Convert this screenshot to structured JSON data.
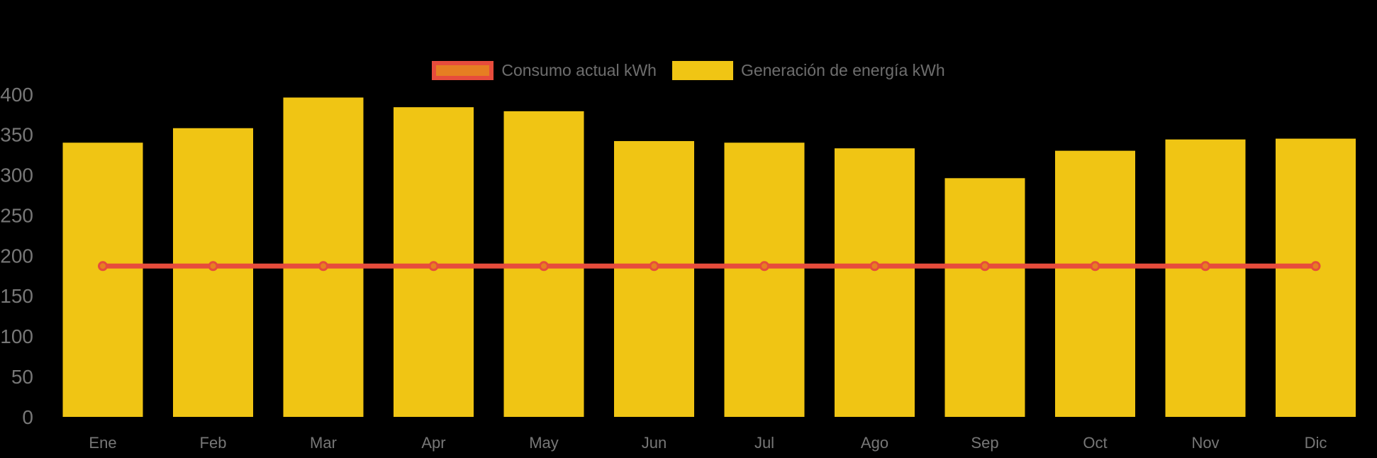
{
  "page": {
    "background_color": "#000000"
  },
  "legend": {
    "text_color": "#6E6E6E",
    "items": [
      {
        "label": "Consumo actual kWh",
        "type": "line",
        "swatch_fill": "#E67E22",
        "swatch_border": "#E74C3C"
      },
      {
        "label": "Generación de energía kWh",
        "type": "bar",
        "swatch_fill": "#F0C514"
      }
    ]
  },
  "chart_data": {
    "type": "bar",
    "title": "",
    "xlabel": "",
    "ylabel": "",
    "categories": [
      "Ene",
      "Feb",
      "Mar",
      "Apr",
      "May",
      "Jun",
      "Jul",
      "Ago",
      "Sep",
      "Oct",
      "Nov",
      "Dic"
    ],
    "series": [
      {
        "name": "Generación de energía kWh",
        "type": "bar",
        "color": "#F0C514",
        "values": [
          340,
          358,
          396,
          384,
          379,
          342,
          340,
          333,
          296,
          330,
          344,
          345
        ]
      },
      {
        "name": "Consumo actual kWh",
        "type": "line",
        "line_color": "#E74C3C",
        "marker_fill": "#E67E22",
        "marker_stroke": "#E74C3C",
        "values": [
          187,
          187,
          187,
          187,
          187,
          187,
          187,
          187,
          187,
          187,
          187,
          187
        ]
      }
    ],
    "ylim": [
      0,
      400
    ],
    "ytick_step": 50,
    "yticks": [
      "0",
      "50",
      "100",
      "150",
      "200",
      "250",
      "300",
      "350",
      "400"
    ],
    "axis_label_color": "#777777",
    "grid": false,
    "legend_position": "top-center",
    "background": "#000000"
  }
}
